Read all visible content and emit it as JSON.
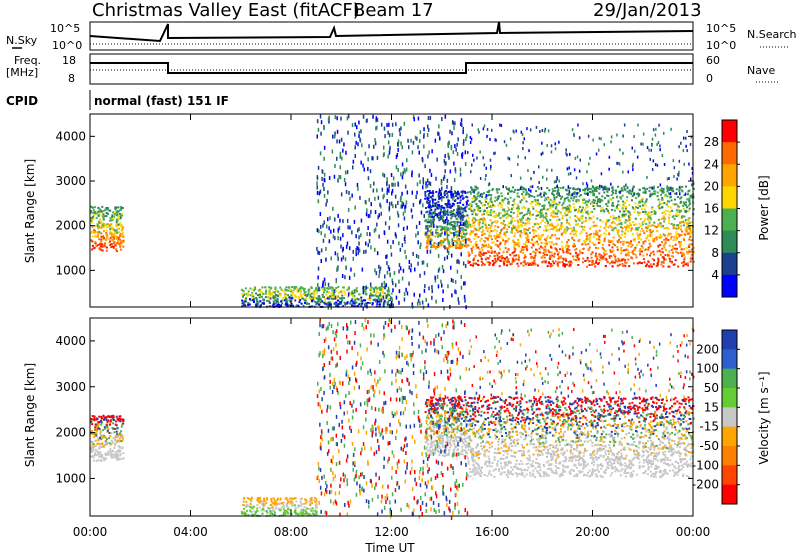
{
  "header": {
    "station": "Christmas Valley East (fitACF)",
    "beam": "Beam 17",
    "date": "29/Jan/2013",
    "cpid_label": "CPID",
    "cpid_value": "normal (fast) 151 IF"
  },
  "strip_labels": {
    "nsky": "N.Sky",
    "nsearch": "N.Search",
    "freq": "Freq.",
    "freq_unit": "[MHz]",
    "nave": "Nave",
    "noise_ticks": [
      "10^5",
      "10^0"
    ],
    "freq_ticks": [
      "18",
      "8"
    ],
    "nave_ticks": [
      "60",
      "0"
    ]
  },
  "chart_data": [
    {
      "type": "heatmap",
      "panel": "power",
      "ylabel": "Slant Range [km]",
      "ylim": [
        180,
        4500
      ],
      "y_ticks": [
        "1000",
        "2000",
        "3000",
        "4000"
      ],
      "colorbar_label": "Power [dB]",
      "colorbar_ticks": [
        "28",
        "24",
        "20",
        "16",
        "12",
        "8",
        "4"
      ],
      "colorbar_colors": [
        "#ff0000",
        "#ff6a00",
        "#ffa500",
        "#ffd700",
        "#4caf50",
        "#2e8b57",
        "#1c3f8f",
        "#0000ff"
      ],
      "series": [
        {
          "x_start": 0.0,
          "x_end": 1.3,
          "y_min": 1450,
          "y_max": 2450,
          "level": "high"
        },
        {
          "x_start": 13.3,
          "x_end": 15.0,
          "y_min": 1500,
          "y_max": 2800,
          "level": "mid"
        },
        {
          "x_start": 15.0,
          "x_end": 24.0,
          "y_min": 1100,
          "y_max": 2900,
          "level": "high"
        },
        {
          "x_start": 6.0,
          "x_end": 12.0,
          "y_min": 200,
          "y_max": 650,
          "level": "low"
        }
      ]
    },
    {
      "type": "heatmap",
      "panel": "velocity",
      "xlabel": "Time UT",
      "ylabel": "Slant Range [km]",
      "ylim": [
        180,
        4500
      ],
      "y_ticks": [
        "1000",
        "2000",
        "3000",
        "4000"
      ],
      "x_ticks": [
        "00:00",
        "04:00",
        "08:00",
        "12:00",
        "16:00",
        "20:00",
        "00:00"
      ],
      "colorbar_label": "Velocity [m s⁻¹]",
      "colorbar_ticks": [
        "200",
        "100",
        "50",
        "15",
        "-15",
        "-50",
        "-100",
        "-200"
      ],
      "colorbar_colors": [
        "#1f3fb0",
        "#2e5fd0",
        "#4caf50",
        "#66cc33",
        "#c8c8c8",
        "#ffa500",
        "#ff7f00",
        "#ff4500",
        "#ff0000"
      ],
      "series": [
        {
          "x_start": 0.0,
          "x_end": 1.3,
          "y_min": 1400,
          "y_max": 2400,
          "level": "ground"
        },
        {
          "x_start": 13.3,
          "x_end": 15.0,
          "y_min": 1500,
          "y_max": 2800,
          "level": "ground"
        },
        {
          "x_start": 15.0,
          "x_end": 24.0,
          "y_min": 1050,
          "y_max": 2800,
          "level": "ground"
        },
        {
          "x_start": 6.0,
          "x_end": 9.0,
          "y_min": 200,
          "y_max": 600,
          "level": "positive"
        }
      ]
    }
  ]
}
